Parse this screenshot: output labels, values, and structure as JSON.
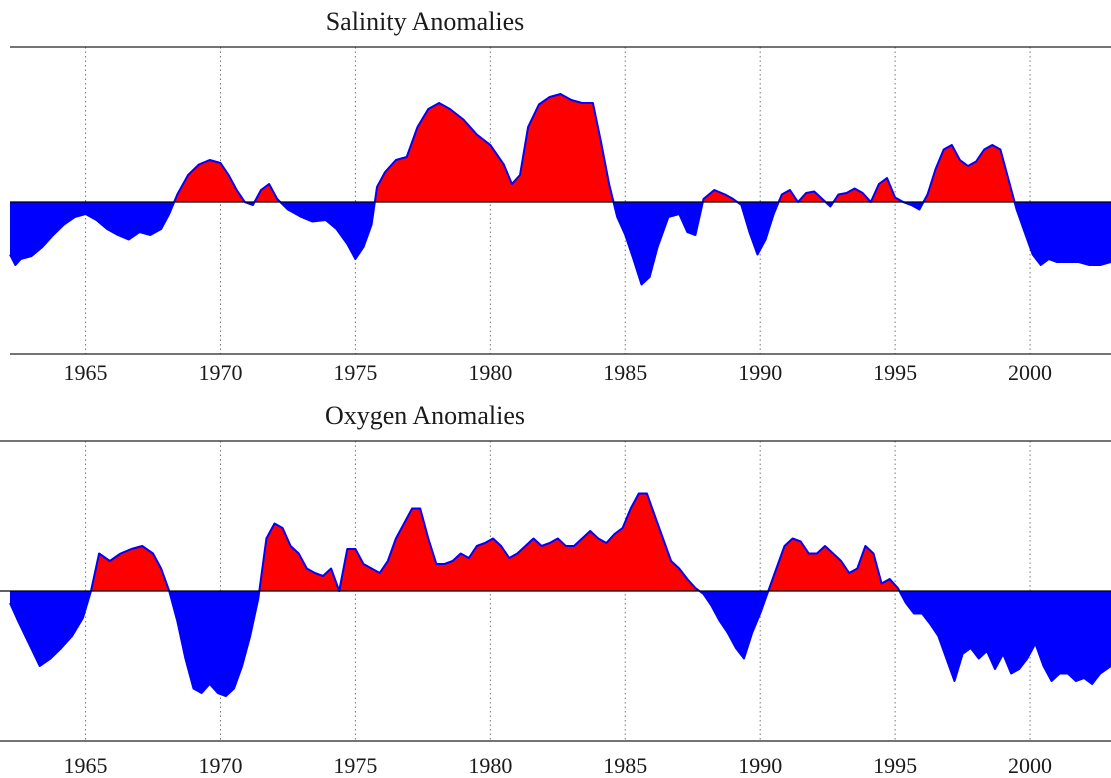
{
  "chart_data": [
    {
      "type": "area",
      "title": "Salinity Anomalies",
      "xlabel": "",
      "ylabel": "",
      "xlim": [
        1962.2,
        2003.0
      ],
      "ylim": [
        -1.0,
        1.0
      ],
      "grid": "x-dotted",
      "xticks": [
        1965,
        1970,
        1975,
        1980,
        1985,
        1990,
        1995,
        2000
      ],
      "colors": {
        "positive": "#ff0000",
        "negative": "#0000ff",
        "line": "#0000ff"
      },
      "series": [
        {
          "x": [
            1962.2,
            1962.4,
            1962.6,
            1963.0,
            1963.4,
            1963.8,
            1964.2,
            1964.6,
            1965.0,
            1965.4,
            1965.8,
            1966.2,
            1966.6,
            1967.0,
            1967.4,
            1967.8,
            1968.1,
            1968.4,
            1968.8,
            1969.2,
            1969.6,
            1970.0,
            1970.3,
            1970.6,
            1970.9,
            1971.2,
            1971.5,
            1971.8,
            1972.1,
            1972.5,
            1973.0,
            1973.4,
            1973.9,
            1974.3,
            1974.7,
            1975.0,
            1975.3,
            1975.6,
            1975.8,
            1976.1,
            1976.5,
            1976.9,
            1977.3,
            1977.7,
            1978.1,
            1978.5,
            1979.0,
            1979.5,
            1980.0,
            1980.5,
            1980.8,
            1981.1,
            1981.4,
            1981.8,
            1982.2,
            1982.6,
            1983.0,
            1983.4,
            1983.8,
            1984.1,
            1984.4,
            1984.7,
            1985.0,
            1985.3,
            1985.6,
            1985.9,
            1986.2,
            1986.6,
            1987.0,
            1987.3,
            1987.6,
            1987.9,
            1988.3,
            1988.7,
            1989.0,
            1989.3,
            1989.6,
            1989.9,
            1990.2,
            1990.5,
            1990.8,
            1991.1,
            1991.4,
            1991.7,
            1992.0,
            1992.3,
            1992.6,
            1992.9,
            1993.2,
            1993.5,
            1993.8,
            1994.1,
            1994.4,
            1994.7,
            1995.0,
            1995.3,
            1995.6,
            1995.9,
            1996.2,
            1996.5,
            1996.8,
            1997.1,
            1997.4,
            1997.7,
            1998.0,
            1998.3,
            1998.6,
            1998.9,
            1999.2,
            1999.5,
            1999.8,
            2000.1,
            2000.4,
            2000.7,
            2001.0,
            2001.4,
            2001.8,
            2002.2,
            2002.6,
            2003.0
          ],
          "y": [
            -0.35,
            -0.42,
            -0.38,
            -0.36,
            -0.3,
            -0.22,
            -0.15,
            -0.1,
            -0.08,
            -0.12,
            -0.18,
            -0.22,
            -0.25,
            -0.2,
            -0.22,
            -0.18,
            -0.08,
            0.05,
            0.18,
            0.25,
            0.28,
            0.26,
            0.18,
            0.08,
            0.0,
            -0.02,
            0.08,
            0.12,
            0.02,
            -0.05,
            -0.1,
            -0.13,
            -0.12,
            -0.18,
            -0.28,
            -0.38,
            -0.3,
            -0.15,
            0.1,
            0.2,
            0.28,
            0.3,
            0.5,
            0.62,
            0.66,
            0.62,
            0.55,
            0.45,
            0.38,
            0.25,
            0.12,
            0.18,
            0.5,
            0.65,
            0.7,
            0.72,
            0.68,
            0.66,
            0.66,
            0.4,
            0.12,
            -0.1,
            -0.22,
            -0.38,
            -0.55,
            -0.5,
            -0.3,
            -0.1,
            -0.08,
            -0.2,
            -0.22,
            0.02,
            0.08,
            0.05,
            0.02,
            -0.02,
            -0.2,
            -0.35,
            -0.25,
            -0.08,
            0.05,
            0.08,
            0.0,
            0.06,
            0.07,
            0.02,
            -0.03,
            0.05,
            0.06,
            0.09,
            0.06,
            0.0,
            0.12,
            0.16,
            0.03,
            0.0,
            -0.02,
            -0.05,
            0.05,
            0.22,
            0.35,
            0.38,
            0.28,
            0.24,
            0.27,
            0.35,
            0.38,
            0.35,
            0.15,
            -0.05,
            -0.2,
            -0.35,
            -0.42,
            -0.38,
            -0.4,
            -0.4,
            -0.4,
            -0.42,
            -0.42,
            -0.4
          ]
        }
      ]
    },
    {
      "type": "area",
      "title": "Oxygen Anomalies",
      "xlabel": "",
      "ylabel": "",
      "xlim": [
        1962.2,
        2003.0
      ],
      "ylim": [
        -1.0,
        1.0
      ],
      "grid": "x-dotted",
      "xticks": [
        1965,
        1970,
        1975,
        1980,
        1985,
        1990,
        1995,
        2000
      ],
      "colors": {
        "positive": "#ff0000",
        "negative": "#0000ff",
        "line": "#0000ff"
      },
      "series": [
        {
          "x": [
            1962.2,
            1962.5,
            1962.9,
            1963.3,
            1963.7,
            1964.1,
            1964.5,
            1964.9,
            1965.2,
            1965.5,
            1965.9,
            1966.3,
            1966.7,
            1967.1,
            1967.5,
            1967.8,
            1968.1,
            1968.4,
            1968.7,
            1969.0,
            1969.3,
            1969.6,
            1969.9,
            1970.2,
            1970.5,
            1970.8,
            1971.1,
            1971.4,
            1971.7,
            1972.0,
            1972.3,
            1972.6,
            1972.9,
            1973.2,
            1973.5,
            1973.8,
            1974.1,
            1974.4,
            1974.7,
            1975.0,
            1975.3,
            1975.6,
            1975.9,
            1976.2,
            1976.5,
            1976.8,
            1977.1,
            1977.4,
            1977.7,
            1978.0,
            1978.3,
            1978.6,
            1978.9,
            1979.2,
            1979.5,
            1979.8,
            1980.1,
            1980.4,
            1980.7,
            1981.0,
            1981.3,
            1981.6,
            1981.9,
            1982.2,
            1982.5,
            1982.8,
            1983.1,
            1983.4,
            1983.7,
            1984.0,
            1984.3,
            1984.6,
            1984.9,
            1985.2,
            1985.5,
            1985.8,
            1986.1,
            1986.4,
            1986.7,
            1987.0,
            1987.3,
            1987.6,
            1987.9,
            1988.2,
            1988.5,
            1988.8,
            1989.1,
            1989.4,
            1989.7,
            1990.0,
            1990.3,
            1990.6,
            1990.9,
            1991.2,
            1991.5,
            1991.8,
            1992.1,
            1992.4,
            1992.7,
            1993.0,
            1993.3,
            1993.6,
            1993.9,
            1994.2,
            1994.5,
            1994.8,
            1995.1,
            1995.4,
            1995.7,
            1996.0,
            1996.3,
            1996.6,
            1996.9,
            1997.2,
            1997.5,
            1997.8,
            1998.1,
            1998.4,
            1998.7,
            1999.0,
            1999.3,
            1999.6,
            1999.9,
            2000.2,
            2000.5,
            2000.8,
            2001.1,
            2001.4,
            2001.7,
            2002.0,
            2002.3,
            2002.6,
            2003.0
          ],
          "y": [
            -0.08,
            -0.2,
            -0.35,
            -0.5,
            -0.45,
            -0.38,
            -0.3,
            -0.18,
            0.0,
            0.25,
            0.2,
            0.25,
            0.28,
            0.3,
            0.25,
            0.15,
            0.0,
            -0.2,
            -0.45,
            -0.65,
            -0.68,
            -0.62,
            -0.68,
            -0.7,
            -0.65,
            -0.5,
            -0.3,
            -0.05,
            0.35,
            0.45,
            0.42,
            0.3,
            0.25,
            0.15,
            0.12,
            0.1,
            0.15,
            0.0,
            0.28,
            0.28,
            0.18,
            0.15,
            0.12,
            0.2,
            0.35,
            0.45,
            0.55,
            0.55,
            0.35,
            0.18,
            0.18,
            0.2,
            0.25,
            0.22,
            0.3,
            0.32,
            0.35,
            0.3,
            0.22,
            0.25,
            0.3,
            0.35,
            0.3,
            0.32,
            0.35,
            0.3,
            0.3,
            0.35,
            0.4,
            0.35,
            0.32,
            0.38,
            0.42,
            0.55,
            0.65,
            0.65,
            0.5,
            0.35,
            0.2,
            0.15,
            0.08,
            0.02,
            -0.02,
            -0.1,
            -0.2,
            -0.28,
            -0.38,
            -0.45,
            -0.28,
            -0.15,
            0.0,
            0.15,
            0.3,
            0.35,
            0.33,
            0.25,
            0.25,
            0.3,
            0.25,
            0.2,
            0.12,
            0.15,
            0.3,
            0.25,
            0.05,
            0.08,
            0.02,
            -0.08,
            -0.15,
            -0.15,
            -0.22,
            -0.3,
            -0.45,
            -0.6,
            -0.42,
            -0.38,
            -0.45,
            -0.4,
            -0.52,
            -0.42,
            -0.55,
            -0.52,
            -0.45,
            -0.35,
            -0.5,
            -0.6,
            -0.55,
            -0.55,
            -0.6,
            -0.58,
            -0.62,
            -0.55,
            -0.5
          ]
        }
      ]
    }
  ]
}
